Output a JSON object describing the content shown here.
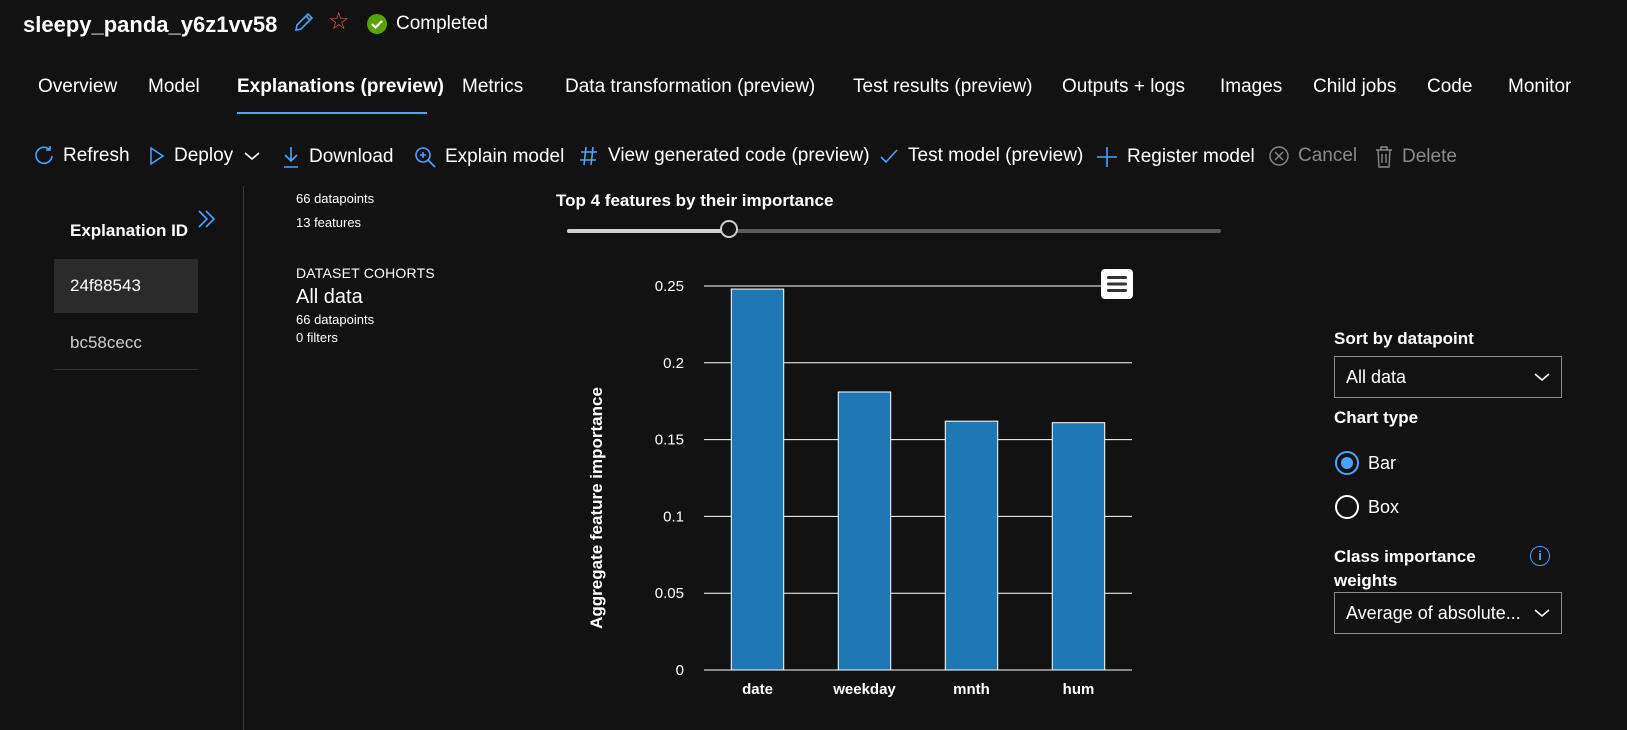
{
  "header": {
    "job_name": "sleepy_panda_y6z1vv58",
    "status": "Completed",
    "colors": {
      "status_ok": "#57a300",
      "star": "#e8623a",
      "accent": "#4aa3ff"
    }
  },
  "tabs": [
    {
      "label": "Overview"
    },
    {
      "label": "Model"
    },
    {
      "label": "Explanations (preview)",
      "active": true
    },
    {
      "label": "Metrics"
    },
    {
      "label": "Data transformation (preview)"
    },
    {
      "label": "Test results (preview)"
    },
    {
      "label": "Outputs + logs"
    },
    {
      "label": "Images"
    },
    {
      "label": "Child jobs"
    },
    {
      "label": "Code"
    },
    {
      "label": "Monitor"
    }
  ],
  "toolbar": {
    "refresh": "Refresh",
    "deploy": "Deploy",
    "download": "Download",
    "explain": "Explain model",
    "view_code": "View generated code (preview)",
    "test_model": "Test model (preview)",
    "register": "Register model",
    "cancel": "Cancel",
    "delete": "Delete"
  },
  "explanations": {
    "header": "Explanation ID",
    "items": [
      "24f88543",
      "bc58cecc"
    ]
  },
  "dataset": {
    "datapoints": "66 datapoints",
    "features": "13 features",
    "cohorts_heading": "DATASET COHORTS",
    "cohort_name": "All data",
    "cohort_datapoints": "66 datapoints",
    "cohort_filters": "0 filters"
  },
  "chart_title": "Top 4 features by their importance",
  "slider": {
    "value_fraction": 0.25
  },
  "chart_data": {
    "type": "bar",
    "categories": [
      "date",
      "weekday",
      "mnth",
      "hum"
    ],
    "values": [
      0.248,
      0.181,
      0.162,
      0.161
    ],
    "ylabel": "Aggregate feature importance",
    "xlabel": "",
    "ylim": [
      0,
      0.25
    ],
    "yticks": [
      "0",
      "0.05",
      "0.1",
      "0.15",
      "0.2",
      "0.25"
    ],
    "ytick_values": [
      0,
      0.05,
      0.1,
      0.15,
      0.2,
      0.25
    ],
    "bar_color": "#1f77b4",
    "grid": true
  },
  "right_panel": {
    "sort_label": "Sort by datapoint",
    "sort_value": "All data",
    "chart_type_label": "Chart type",
    "chart_type_options": [
      "Bar",
      "Box"
    ],
    "class_weights_label_1": "Class importance",
    "class_weights_label_2": "weights",
    "class_weights_value": "Average of absolute..."
  }
}
